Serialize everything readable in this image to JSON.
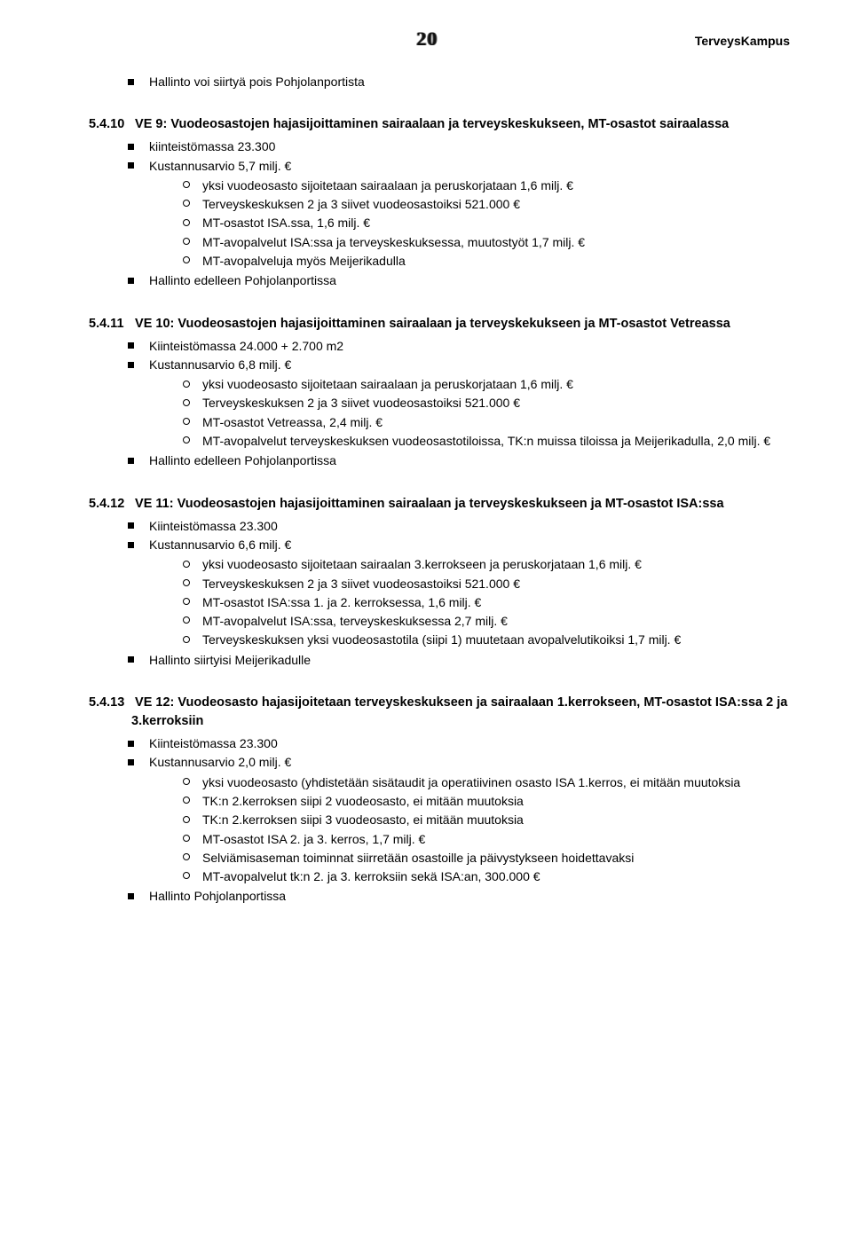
{
  "header": {
    "page_number": "20",
    "doc_title": "TerveysKampus"
  },
  "intro": {
    "items": [
      "Hallinto voi siirtyä pois Pohjolanportista"
    ]
  },
  "sections": [
    {
      "num": "5.4.10",
      "title": "VE 9: Vuodeosastojen hajasijoittaminen sairaalaan ja terveyskeskukseen, MT-osastot sairaalassa",
      "bullets": [
        {
          "text": "kiinteistömassa 23.300"
        },
        {
          "text": "Kustannusarvio 5,7 milj. €",
          "sub": [
            "yksi vuodeosasto sijoitetaan sairaalaan ja peruskorjataan 1,6 milj. €",
            "Terveyskeskuksen 2 ja 3 siivet vuodeosastoiksi 521.000 €",
            "MT-osastot ISA.ssa, 1,6 milj. €",
            "MT-avopalvelut ISA:ssa ja terveyskeskuksessa, muutostyöt 1,7 milj. €",
            "MT-avopalveluja myös Meijerikadulla"
          ]
        },
        {
          "text": "Hallinto edelleen Pohjolanportissa"
        }
      ]
    },
    {
      "num": "5.4.11",
      "title": "VE 10: Vuodeosastojen hajasijoittaminen sairaalaan ja terveyskekukseen ja MT-osastot Vetreassa",
      "bullets": [
        {
          "text": "Kiinteistömassa 24.000 + 2.700 m2"
        },
        {
          "text": "Kustannusarvio 6,8 milj. €",
          "sub": [
            "yksi vuodeosasto sijoitetaan sairaalaan ja peruskorjataan 1,6 milj. €",
            "Terveyskeskuksen 2 ja 3 siivet vuodeosastoiksi 521.000 €",
            "MT-osastot Vetreassa, 2,4 milj. €",
            "MT-avopalvelut terveyskeskuksen vuodeosastotiloissa, TK:n muissa tiloissa ja Meijerikadulla, 2,0 milj. €"
          ]
        },
        {
          "text": "Hallinto edelleen Pohjolanportissa"
        }
      ]
    },
    {
      "num": "5.4.12",
      "title": "VE 11: Vuodeosastojen hajasijoittaminen sairaalaan ja terveyskeskukseen ja MT-osastot ISA:ssa",
      "bullets": [
        {
          "text": "Kiinteistömassa 23.300"
        },
        {
          "text": "Kustannusarvio 6,6 milj. €",
          "sub": [
            "yksi vuodeosasto sijoitetaan sairaalan 3.kerrokseen ja peruskorjataan 1,6 milj. €",
            "Terveyskeskuksen 2 ja 3 siivet vuodeosastoiksi 521.000 €",
            "MT-osastot ISA:ssa 1. ja 2. kerroksessa,  1,6 milj. €",
            "MT-avopalvelut ISA:ssa, terveyskeskuksessa 2,7 milj. €",
            "Terveyskeskuksen yksi vuodeosastotila (siipi 1) muutetaan avopalvelutikoiksi 1,7 milj. €"
          ]
        },
        {
          "text": "Hallinto siirtyisi Meijerikadulle"
        }
      ]
    },
    {
      "num": "5.4.13",
      "title": "VE 12: Vuodeosasto hajasijoitetaan terveyskeskukseen ja sairaalaan 1.kerrokseen, MT-osastot ISA:ssa 2 ja 3.kerroksiin",
      "bullets": [
        {
          "text": "Kiinteistömassa 23.300"
        },
        {
          "text": "Kustannusarvio 2,0 milj. €",
          "sub": [
            "yksi vuodeosasto (yhdistetään sisätaudit ja operatiivinen osasto ISA 1.kerros, ei mitään muutoksia",
            "TK:n 2.kerroksen siipi 2 vuodeosasto, ei mitään muutoksia",
            "TK:n 2.kerroksen siipi 3 vuodeosasto, ei mitään muutoksia",
            "MT-osastot ISA 2. ja 3. kerros, 1,7 milj. €",
            "Selviämisaseman toiminnat siirretään osastoille ja päivystykseen hoidettavaksi",
            "MT-avopalvelut tk:n 2. ja 3. kerroksiin sekä ISA:an, 300.000 €"
          ]
        },
        {
          "text": "Hallinto Pohjolanportissa"
        }
      ]
    }
  ]
}
